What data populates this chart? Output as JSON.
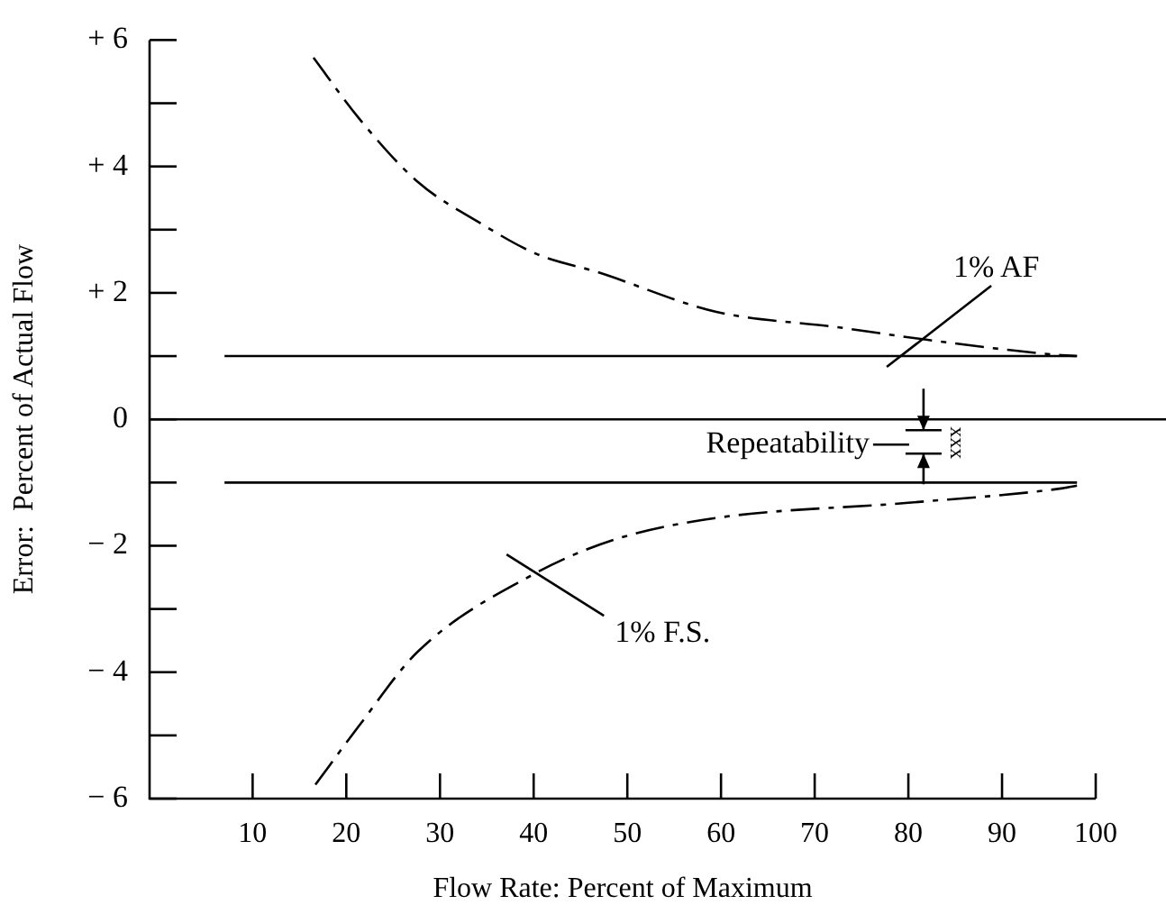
{
  "chart_data": {
    "type": "line",
    "xlabel": "Flow Rate: Percent of Maximum",
    "ylabel": "Error:  Percent of Actual Flow",
    "xlim": [
      -1,
      100
    ],
    "xticks": [
      10,
      20,
      30,
      40,
      50,
      60,
      70,
      80,
      90,
      100
    ],
    "ylim": [
      -6,
      6
    ],
    "yticks": [
      {
        "value": 6,
        "label": "+ 6"
      },
      {
        "value": 5,
        "label": null
      },
      {
        "value": 4,
        "label": "+ 4"
      },
      {
        "value": 3,
        "label": null
      },
      {
        "value": 2,
        "label": "+ 2"
      },
      {
        "value": 1,
        "label": null
      },
      0,
      {
        "value": -1,
        "label": null
      },
      {
        "value": -2,
        "label": "− 2"
      },
      {
        "value": -3,
        "label": null
      },
      {
        "value": -4,
        "label": "− 4"
      },
      {
        "value": -5,
        "label": null
      },
      {
        "value": -6,
        "label": "− 6"
      }
    ],
    "grid": false,
    "legend": false,
    "series": [
      {
        "color": "#000000",
        "line_style": "solid",
        "x": [
          7,
          98
        ],
        "values": [
          1,
          1
        ]
      },
      {
        "color": "#000000",
        "line_style": "solid",
        "x": [
          7,
          98
        ],
        "values": [
          -1,
          -1
        ]
      },
      {
        "color": "#000000",
        "line_style": "dashed",
        "x": [
          16.5,
          21.3,
          27.6,
          34,
          40.4,
          46.8,
          59.5,
          72.3,
          81.9,
          95.8,
          98
        ],
        "values": [
          5.72,
          4.77,
          3.76,
          3.13,
          2.61,
          2.33,
          1.7,
          1.46,
          1.26,
          1.02,
          1
        ]
      },
      {
        "color": "#000000",
        "line_style": "dashed",
        "x": [
          16.7,
          21.3,
          27.6,
          40,
          48.7,
          59.5,
          80,
          96.5,
          98
        ],
        "values": [
          -5.78,
          -4.86,
          -3.68,
          -2.45,
          -1.9,
          -1.56,
          -1.32,
          -1.09,
          -1.05
        ]
      }
    ],
    "ref_lines": [
      {
        "axis": "y",
        "value": 0,
        "color": "#000000"
      }
    ],
    "annotations": [
      {
        "text": "1% AF",
        "x": 80,
        "y": 1
      },
      {
        "text": "1% F.S.",
        "x": 40,
        "y": -2.45
      },
      "Repeatability",
      "xxx"
    ]
  }
}
